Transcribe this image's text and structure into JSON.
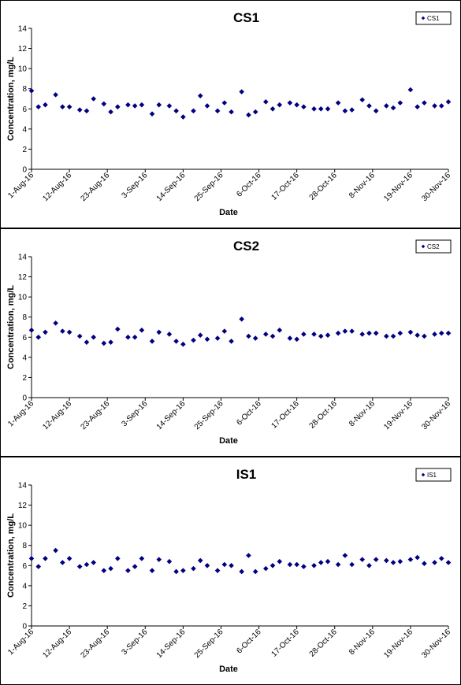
{
  "chart_data": [
    {
      "type": "scatter",
      "title": "CS1",
      "xlabel": "Date",
      "ylabel": "Concentration, mg/L",
      "ylim": [
        0,
        14
      ],
      "yticks": [
        0,
        2,
        4,
        6,
        8,
        10,
        12,
        14
      ],
      "xtick_labels": [
        "1-Aug-16",
        "12-Aug-16",
        "23-Aug-16",
        "3-Sep-16",
        "14-Sep-16",
        "25-Sep-16",
        "6-Oct-16",
        "17-Oct-16",
        "28-Oct-16",
        "8-Nov-16",
        "19-Nov-16",
        "30-Nov-16"
      ],
      "xlim_days": [
        0,
        121
      ],
      "legend": "top-right",
      "marker_color": "#000080",
      "series": [
        {
          "name": "CS1",
          "x": [
            0,
            2,
            4,
            7,
            9,
            11,
            14,
            16,
            18,
            21,
            23,
            25,
            28,
            30,
            32,
            35,
            37,
            40,
            42,
            44,
            47,
            49,
            51,
            54,
            56,
            58,
            61,
            63,
            65,
            68,
            70,
            72,
            75,
            77,
            79,
            82,
            84,
            86,
            89,
            91,
            93,
            96,
            98,
            100,
            103,
            105,
            107,
            110,
            112,
            114,
            117,
            119,
            121
          ],
          "y": [
            7.8,
            6.2,
            6.4,
            7.4,
            6.2,
            6.2,
            5.9,
            5.8,
            7.0,
            6.5,
            5.7,
            6.2,
            6.4,
            6.3,
            6.4,
            5.5,
            6.4,
            6.3,
            5.8,
            5.2,
            5.8,
            7.3,
            6.3,
            5.8,
            6.6,
            5.7,
            7.7,
            5.4,
            5.7,
            6.7,
            6.0,
            6.4,
            6.6,
            6.4,
            6.2,
            6.0,
            6.0,
            6.0,
            6.6,
            5.8,
            5.9,
            6.9,
            6.3,
            5.8,
            6.3,
            6.1,
            6.6,
            7.9,
            6.2,
            6.6,
            6.3,
            6.3,
            6.7
          ]
        }
      ]
    },
    {
      "type": "scatter",
      "title": "CS2",
      "xlabel": "Date",
      "ylabel": "Concentration, mg/L",
      "ylim": [
        0,
        14
      ],
      "yticks": [
        0,
        2,
        4,
        6,
        8,
        10,
        12,
        14
      ],
      "xtick_labels": [
        "1-Aug-16",
        "12-Aug-16",
        "23-Aug-16",
        "3-Sep-16",
        "14-Sep-16",
        "25-Sep-16",
        "6-Oct-16",
        "17-Oct-16",
        "28-Oct-16",
        "8-Nov-16",
        "19-Nov-16",
        "30-Nov-16"
      ],
      "xlim_days": [
        0,
        121
      ],
      "legend": "top-right",
      "marker_color": "#000080",
      "series": [
        {
          "name": "CS2",
          "x": [
            0,
            2,
            4,
            7,
            9,
            11,
            14,
            16,
            18,
            21,
            23,
            25,
            28,
            30,
            32,
            35,
            37,
            40,
            42,
            44,
            47,
            49,
            51,
            54,
            56,
            58,
            61,
            63,
            65,
            68,
            70,
            72,
            75,
            77,
            79,
            82,
            84,
            86,
            89,
            91,
            93,
            96,
            98,
            100,
            103,
            105,
            107,
            110,
            112,
            114,
            117,
            119,
            121
          ],
          "y": [
            6.7,
            6.0,
            6.5,
            7.4,
            6.6,
            6.5,
            6.1,
            5.5,
            6.0,
            5.4,
            5.5,
            6.8,
            6.0,
            6.0,
            6.7,
            5.6,
            6.5,
            6.3,
            5.6,
            5.3,
            5.7,
            6.2,
            5.8,
            5.9,
            6.6,
            5.6,
            7.8,
            6.1,
            5.9,
            6.3,
            6.1,
            6.7,
            5.9,
            5.8,
            6.3,
            6.3,
            6.1,
            6.2,
            6.4,
            6.6,
            6.6,
            6.3,
            6.4,
            6.4,
            6.1,
            6.1,
            6.4,
            6.5,
            6.2,
            6.1,
            6.3,
            6.4,
            6.4
          ]
        }
      ]
    },
    {
      "type": "scatter",
      "title": "IS1",
      "xlabel": "Date",
      "ylabel": "Concentration, mg/L",
      "ylim": [
        0,
        14
      ],
      "yticks": [
        0,
        2,
        4,
        6,
        8,
        10,
        12,
        14
      ],
      "xtick_labels": [
        "1-Aug-16",
        "12-Aug-16",
        "23-Aug-16",
        "3-Sep-16",
        "14-Sep-16",
        "25-Sep-16",
        "6-Oct-16",
        "17-Oct-16",
        "28-Oct-16",
        "8-Nov-16",
        "19-Nov-16",
        "30-Nov-16"
      ],
      "xlim_days": [
        0,
        121
      ],
      "legend": "top-right",
      "marker_color": "#000080",
      "series": [
        {
          "name": "IS1",
          "x": [
            0,
            2,
            4,
            7,
            9,
            11,
            14,
            16,
            18,
            21,
            23,
            25,
            28,
            30,
            32,
            35,
            37,
            40,
            42,
            44,
            47,
            49,
            51,
            54,
            56,
            58,
            61,
            63,
            65,
            68,
            70,
            72,
            75,
            77,
            79,
            82,
            84,
            86,
            89,
            91,
            93,
            96,
            98,
            100,
            103,
            105,
            107,
            110,
            112,
            114,
            117,
            119,
            121
          ],
          "y": [
            6.7,
            5.9,
            6.7,
            7.5,
            6.3,
            6.7,
            5.9,
            6.1,
            6.3,
            5.5,
            5.7,
            6.7,
            5.5,
            5.9,
            6.7,
            5.5,
            6.6,
            6.4,
            5.4,
            5.5,
            5.7,
            6.5,
            6.0,
            5.5,
            6.1,
            6.0,
            5.4,
            7.0,
            5.4,
            5.7,
            6.0,
            6.4,
            6.1,
            6.1,
            5.9,
            6.0,
            6.3,
            6.4,
            6.1,
            7.0,
            6.1,
            6.6,
            6.0,
            6.6,
            6.5,
            6.3,
            6.4,
            6.6,
            6.8,
            6.2,
            6.3,
            6.7,
            6.3
          ]
        }
      ]
    }
  ]
}
